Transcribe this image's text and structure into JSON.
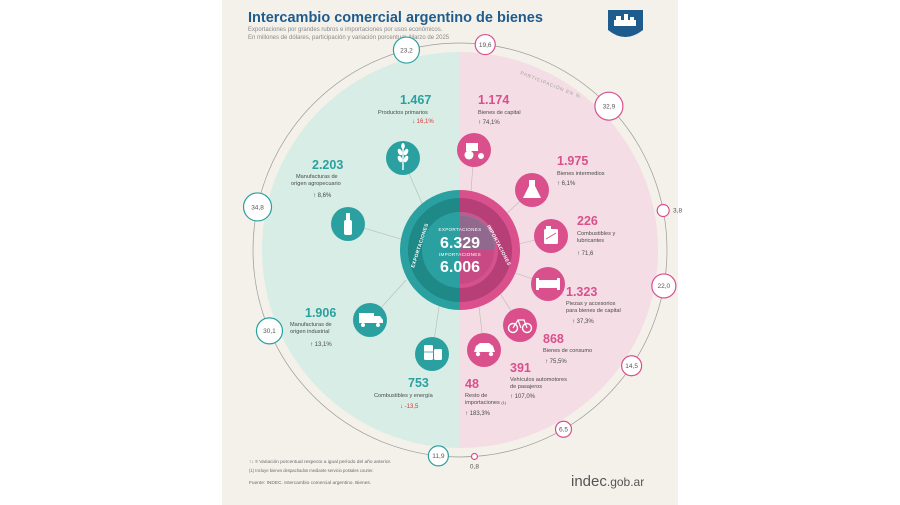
{
  "header": {
    "title": "Intercambio comercial argentino de bienes",
    "subtitle1": "Exportaciones por grandes rubros e importaciones por usos económicos.",
    "subtitle2": "En millones de dólares, participación y variación porcentual. Marzo de 2025"
  },
  "center": {
    "exp_label": "EXPORTACIONES",
    "exp_value": "6.329",
    "imp_label": "IMPORTACIONES",
    "imp_value": "6.006",
    "ring_exp": "EXPORTACIONES",
    "ring_imp": "IMPORTACIONES",
    "outer_ring_label": "PARTICIPACIÓN EN %"
  },
  "colors": {
    "exports": "#2aa1a0",
    "imports": "#d9508d",
    "exports_bg": "#d7ede6",
    "imports_bg": "#f4dde4",
    "title": "#1f5c8e",
    "decrease": "#d23b3b"
  },
  "chart_data": {
    "type": "radial",
    "exports": [
      {
        "name": "Productos primarios",
        "value": "1.467",
        "change": "16,1%",
        "dir": "down",
        "share": "23,2",
        "icon": "wheat-icon"
      },
      {
        "name": "Manufacturas de origen agropecuario",
        "value": "2.203",
        "change": "8,6%",
        "dir": "up",
        "share": "34,8",
        "icon": "bottle-icon"
      },
      {
        "name": "Manufacturas de origen industrial",
        "value": "1.906",
        "change": "13,1%",
        "dir": "up",
        "share": "30,1",
        "icon": "truck-icon"
      },
      {
        "name": "Combustibles y energía",
        "value": "753",
        "change": "-13,5",
        "dir": "down",
        "share": "11,9",
        "icon": "barrels-icon"
      }
    ],
    "imports": [
      {
        "name": "Bienes de capital",
        "value": "1.174",
        "change": "74,1%",
        "dir": "up",
        "share": "19,6",
        "icon": "tractor-icon"
      },
      {
        "name": "Bienes intermedios",
        "value": "1.975",
        "change": "6,1%",
        "dir": "up",
        "share": "32,9",
        "icon": "flask-icon"
      },
      {
        "name": "Combustibles y lubricantes",
        "value": "226",
        "change": "71,6",
        "dir": "up",
        "share": "3,8",
        "icon": "jerrycan-icon"
      },
      {
        "name": "Piezas y accesorios para bienes de capital",
        "value": "1.323",
        "change": "37,3%",
        "dir": "up",
        "share": "22,0",
        "icon": "pipe-icon"
      },
      {
        "name": "Bienes de consumo",
        "value": "868",
        "change": "75,5%",
        "dir": "up",
        "share": "14,5",
        "icon": "bicycle-icon"
      },
      {
        "name": "Vehículos automotores de pasajeros",
        "value": "391",
        "change": "107,0%",
        "dir": "up",
        "share": "6,5",
        "icon": "car-icon"
      },
      {
        "name": "Resto de importaciones",
        "note": "(1)",
        "value": "48",
        "change": "183,3%",
        "dir": "up",
        "share": "0,8",
        "icon": "none"
      }
    ]
  },
  "footer": {
    "legend": "Variación porcentual respecto a igual período del año anterior.",
    "note": "(1) Incluye bienes despachados mediante servicio postales courier.",
    "source": "Fuente: INDEC. Intercambio comercial argentino. Bienes.",
    "brand_main": "indec",
    "brand_domain": ".gob.ar"
  }
}
